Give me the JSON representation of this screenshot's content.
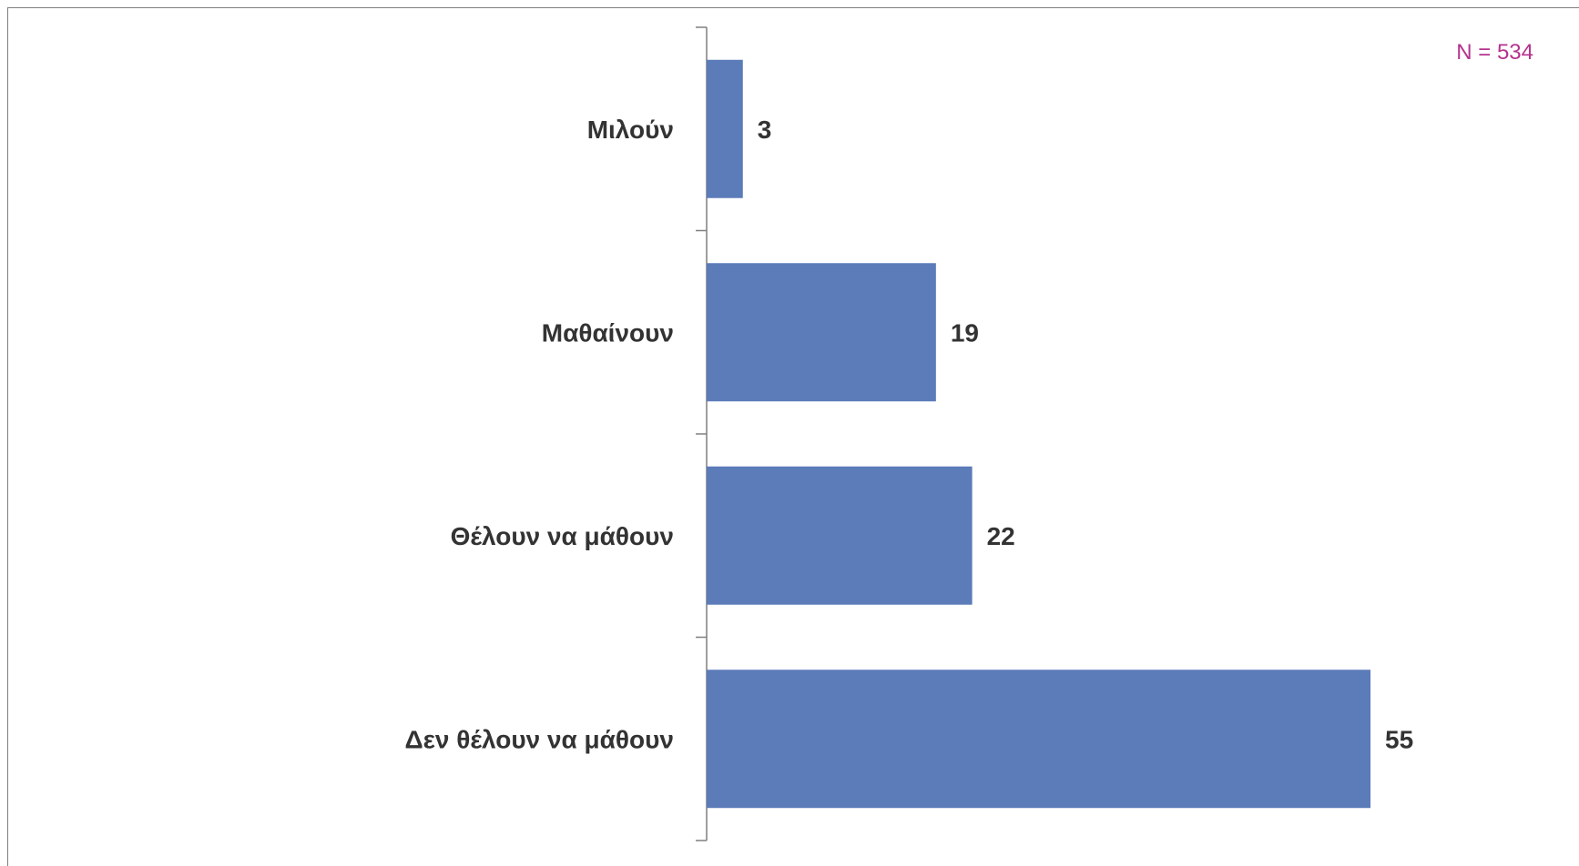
{
  "chart_data": {
    "type": "bar",
    "orientation": "horizontal",
    "categories": [
      "Μιλούν",
      "Μαθαίνουν",
      "Θέλουν να μάθουν",
      "Δεν θέλουν να μάθουν"
    ],
    "values": [
      3,
      19,
      22,
      55
    ],
    "data_labels": [
      "3",
      "19",
      "22",
      "55"
    ],
    "annotation": "N = 534",
    "title": "",
    "xlabel": "",
    "ylabel": "",
    "xlim": [
      0,
      55
    ],
    "grid": false,
    "legend": "none",
    "colors": {
      "bar": "#5b7bb9",
      "annotation": "#b5338e",
      "axis": "#7f7f7f",
      "text": "#333333"
    }
  }
}
